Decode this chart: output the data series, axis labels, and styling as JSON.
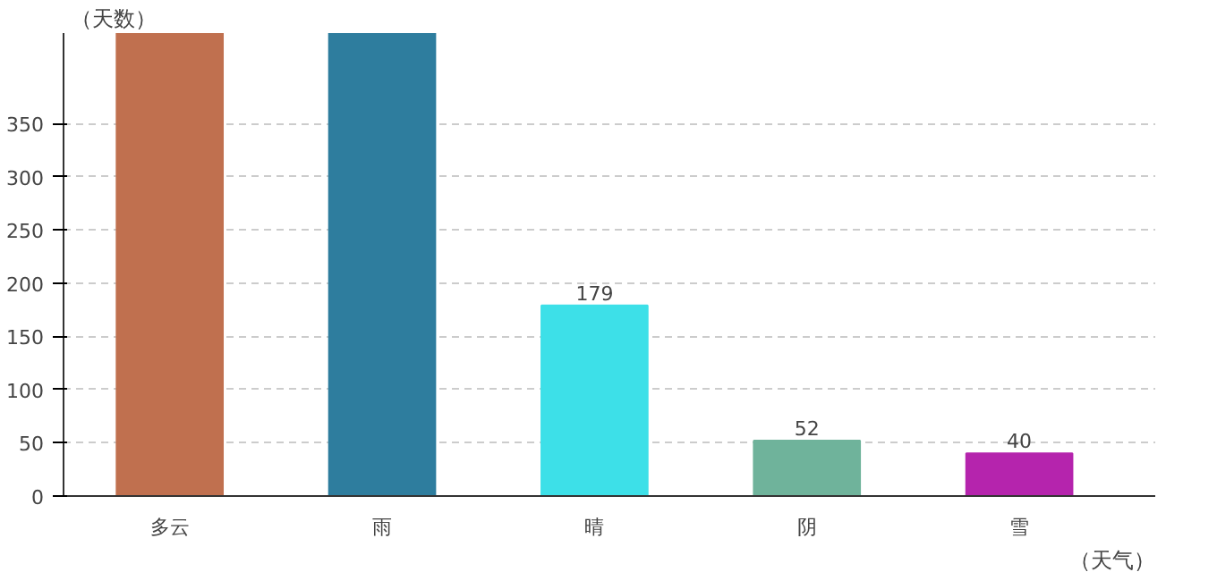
{
  "chart_data": {
    "type": "bar",
    "xlabel": "（天气）",
    "ylabel": "（天数）",
    "categories": [
      "多云",
      "雨",
      "晴",
      "阴",
      "雪"
    ],
    "values": [
      435,
      435,
      179,
      52,
      40
    ],
    "value_labels": [
      null,
      null,
      "179",
      "52",
      "40"
    ],
    "colors": [
      "#c0704f",
      "#2e7d9e",
      "#3de0e8",
      "#6fb39b",
      "#b524ad"
    ],
    "ylim": [
      0,
      435
    ],
    "yticks": [
      0,
      50,
      100,
      150,
      200,
      250,
      300,
      350
    ],
    "grid": "y"
  }
}
